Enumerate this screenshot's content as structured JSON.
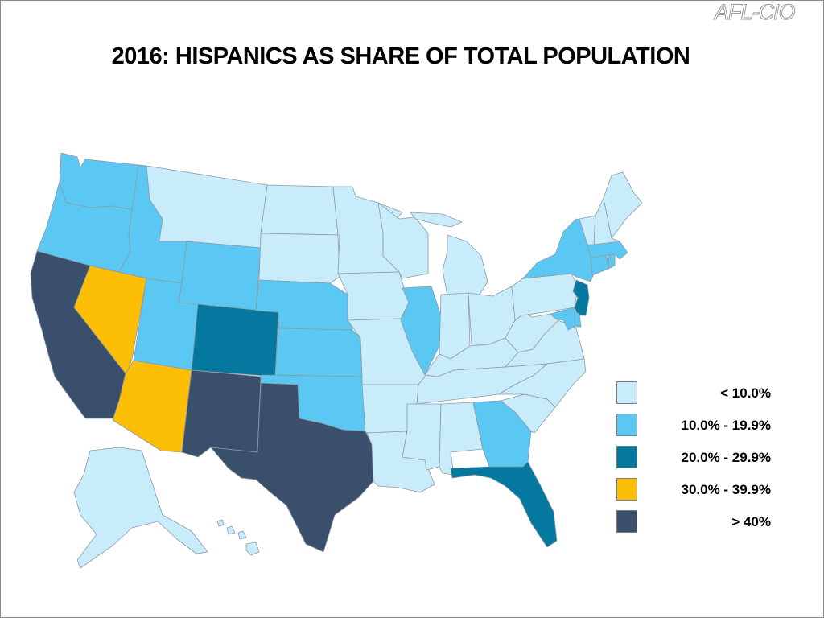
{
  "logo": "AFL-CIO",
  "title": "2016: HISPANICS AS SHARE OF TOTAL POPULATION",
  "colors": {
    "c1": "#c9ecfa",
    "c2": "#5bc8f3",
    "c3": "#04789f",
    "c4": "#fdbf05",
    "c5": "#3a4f6c"
  },
  "legend": [
    {
      "label": "< 10.0%",
      "class": "c1"
    },
    {
      "label": "10.0% - 19.9%",
      "class": "c2"
    },
    {
      "label": "20.0% - 29.9%",
      "class": "c3"
    },
    {
      "label": "30.0% - 39.9%",
      "class": "c4"
    },
    {
      "label": "> 40%",
      "class": "c5"
    }
  ],
  "states": [
    {
      "id": "WA",
      "class": "c2"
    },
    {
      "id": "OR",
      "class": "c2"
    },
    {
      "id": "CA",
      "class": "c5"
    },
    {
      "id": "NV",
      "class": "c4"
    },
    {
      "id": "ID",
      "class": "c2"
    },
    {
      "id": "MT",
      "class": "c1"
    },
    {
      "id": "WY",
      "class": "c2"
    },
    {
      "id": "UT",
      "class": "c2"
    },
    {
      "id": "AZ",
      "class": "c4"
    },
    {
      "id": "CO",
      "class": "c3"
    },
    {
      "id": "NM",
      "class": "c5"
    },
    {
      "id": "ND",
      "class": "c1"
    },
    {
      "id": "SD",
      "class": "c1"
    },
    {
      "id": "NE",
      "class": "c2"
    },
    {
      "id": "KS",
      "class": "c2"
    },
    {
      "id": "OK",
      "class": "c2"
    },
    {
      "id": "TX",
      "class": "c5"
    },
    {
      "id": "MN",
      "class": "c1"
    },
    {
      "id": "IA",
      "class": "c1"
    },
    {
      "id": "MO",
      "class": "c1"
    },
    {
      "id": "AR",
      "class": "c1"
    },
    {
      "id": "LA",
      "class": "c1"
    },
    {
      "id": "WI",
      "class": "c1"
    },
    {
      "id": "IL",
      "class": "c2"
    },
    {
      "id": "MI",
      "class": "c1"
    },
    {
      "id": "IN",
      "class": "c1"
    },
    {
      "id": "OH",
      "class": "c1"
    },
    {
      "id": "KY",
      "class": "c1"
    },
    {
      "id": "TN",
      "class": "c1"
    },
    {
      "id": "MS",
      "class": "c1"
    },
    {
      "id": "AL",
      "class": "c1"
    },
    {
      "id": "GA",
      "class": "c2"
    },
    {
      "id": "FL",
      "class": "c3"
    },
    {
      "id": "SC",
      "class": "c1"
    },
    {
      "id": "NC",
      "class": "c1"
    },
    {
      "id": "VA",
      "class": "c1"
    },
    {
      "id": "WV",
      "class": "c1"
    },
    {
      "id": "PA",
      "class": "c1"
    },
    {
      "id": "NY",
      "class": "c2"
    },
    {
      "id": "NJ",
      "class": "c3"
    },
    {
      "id": "DE",
      "class": "c2"
    },
    {
      "id": "MD",
      "class": "c2"
    },
    {
      "id": "CT",
      "class": "c2"
    },
    {
      "id": "RI",
      "class": "c2"
    },
    {
      "id": "MA",
      "class": "c2"
    },
    {
      "id": "VT",
      "class": "c1"
    },
    {
      "id": "NH",
      "class": "c1"
    },
    {
      "id": "ME",
      "class": "c1"
    },
    {
      "id": "AK",
      "class": "c1"
    },
    {
      "id": "HI",
      "class": "c1"
    }
  ]
}
